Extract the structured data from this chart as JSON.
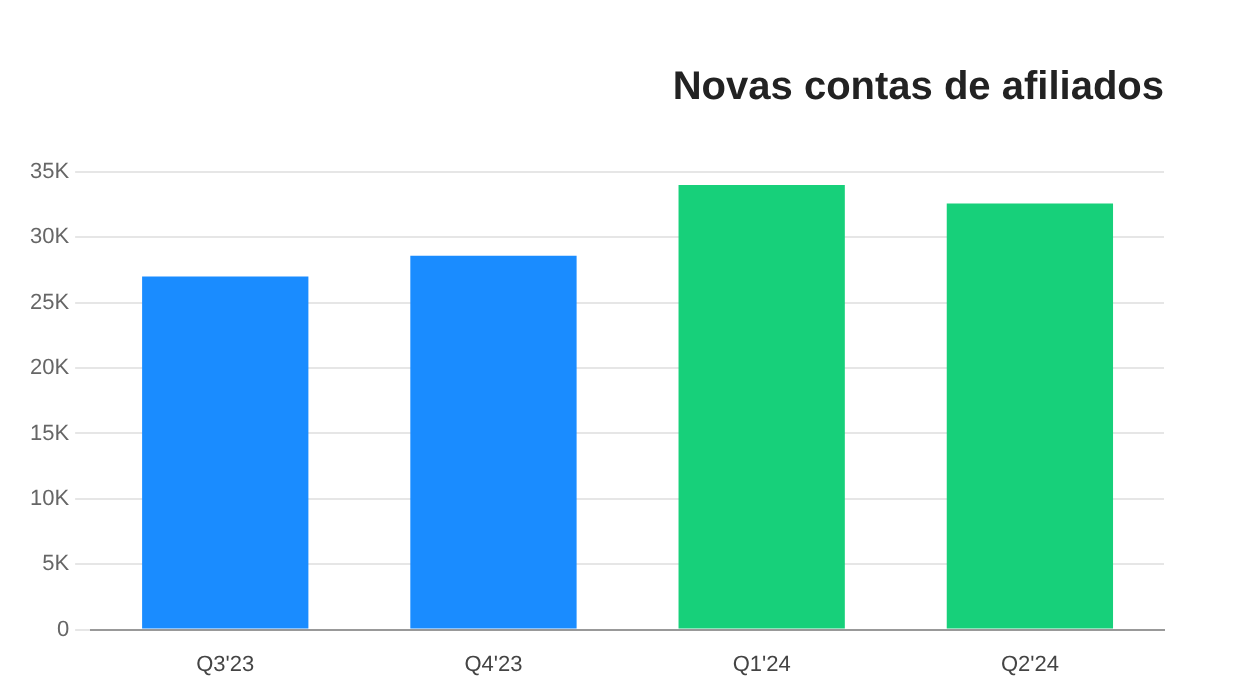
{
  "chart_data": {
    "type": "bar",
    "title": "Novas contas de afiliados",
    "categories": [
      "Q3'23",
      "Q4'23",
      "Q1'24",
      "Q2'24"
    ],
    "values": [
      27.0,
      28.6,
      34.0,
      32.6
    ],
    "colors": [
      "#1a8cff",
      "#1a8cff",
      "#17d07a",
      "#17d07a"
    ],
    "ylim": [
      0,
      35
    ],
    "yticks": [
      0,
      {
        "value": 5,
        "label": "5K"
      },
      {
        "value": 10,
        "label": "10K"
      },
      {
        "value": 15,
        "label": "15K"
      },
      {
        "value": 20,
        "label": "20K"
      },
      {
        "value": 25,
        "label": "25K"
      },
      {
        "value": 30,
        "label": "30K"
      },
      {
        "value": 35,
        "label": "35K"
      }
    ],
    "grid": "y"
  }
}
